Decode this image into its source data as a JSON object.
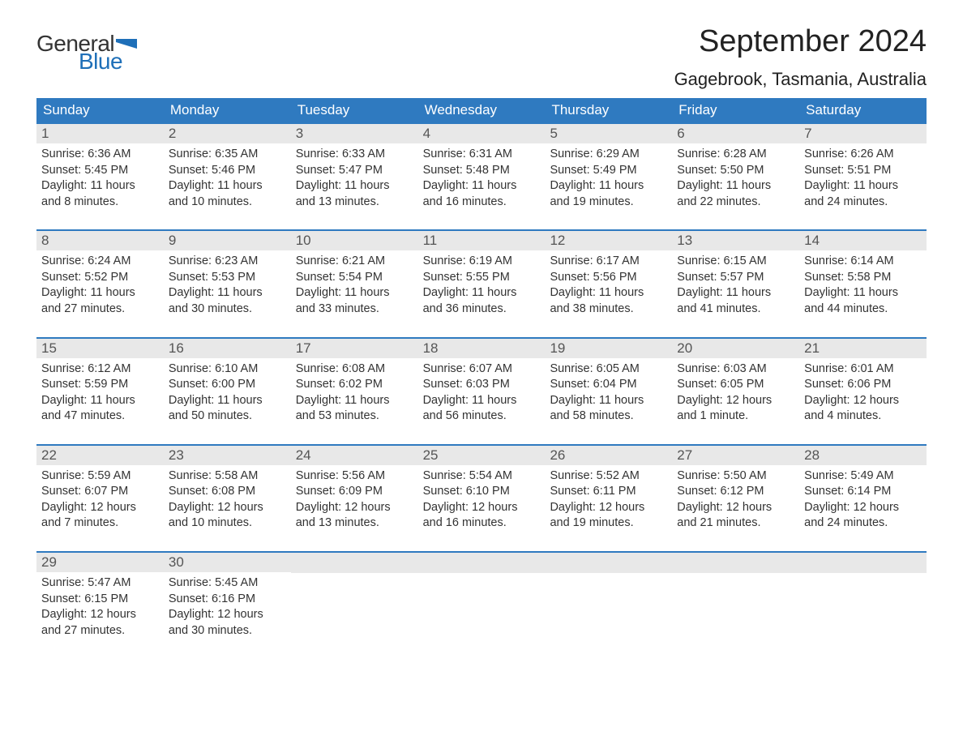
{
  "logo": {
    "text1": "General",
    "text2": "Blue",
    "color_dark": "#333333",
    "color_blue": "#1e6fb8"
  },
  "title": "September 2024",
  "location": "Gagebrook, Tasmania, Australia",
  "colors": {
    "header_bg": "#2f7ac0",
    "header_text": "#ffffff",
    "daynum_bg": "#e8e8e8",
    "daynum_text": "#555555",
    "body_text": "#333333",
    "page_bg": "#ffffff",
    "week_border": "#2f7ac0"
  },
  "typography": {
    "title_fontsize": 38,
    "location_fontsize": 22,
    "dow_fontsize": 17,
    "daynum_fontsize": 17,
    "body_fontsize": 14.5
  },
  "days_of_week": [
    "Sunday",
    "Monday",
    "Tuesday",
    "Wednesday",
    "Thursday",
    "Friday",
    "Saturday"
  ],
  "weeks": [
    [
      {
        "n": "1",
        "sunrise": "Sunrise: 6:36 AM",
        "sunset": "Sunset: 5:45 PM",
        "d1": "Daylight: 11 hours",
        "d2": "and 8 minutes."
      },
      {
        "n": "2",
        "sunrise": "Sunrise: 6:35 AM",
        "sunset": "Sunset: 5:46 PM",
        "d1": "Daylight: 11 hours",
        "d2": "and 10 minutes."
      },
      {
        "n": "3",
        "sunrise": "Sunrise: 6:33 AM",
        "sunset": "Sunset: 5:47 PM",
        "d1": "Daylight: 11 hours",
        "d2": "and 13 minutes."
      },
      {
        "n": "4",
        "sunrise": "Sunrise: 6:31 AM",
        "sunset": "Sunset: 5:48 PM",
        "d1": "Daylight: 11 hours",
        "d2": "and 16 minutes."
      },
      {
        "n": "5",
        "sunrise": "Sunrise: 6:29 AM",
        "sunset": "Sunset: 5:49 PM",
        "d1": "Daylight: 11 hours",
        "d2": "and 19 minutes."
      },
      {
        "n": "6",
        "sunrise": "Sunrise: 6:28 AM",
        "sunset": "Sunset: 5:50 PM",
        "d1": "Daylight: 11 hours",
        "d2": "and 22 minutes."
      },
      {
        "n": "7",
        "sunrise": "Sunrise: 6:26 AM",
        "sunset": "Sunset: 5:51 PM",
        "d1": "Daylight: 11 hours",
        "d2": "and 24 minutes."
      }
    ],
    [
      {
        "n": "8",
        "sunrise": "Sunrise: 6:24 AM",
        "sunset": "Sunset: 5:52 PM",
        "d1": "Daylight: 11 hours",
        "d2": "and 27 minutes."
      },
      {
        "n": "9",
        "sunrise": "Sunrise: 6:23 AM",
        "sunset": "Sunset: 5:53 PM",
        "d1": "Daylight: 11 hours",
        "d2": "and 30 minutes."
      },
      {
        "n": "10",
        "sunrise": "Sunrise: 6:21 AM",
        "sunset": "Sunset: 5:54 PM",
        "d1": "Daylight: 11 hours",
        "d2": "and 33 minutes."
      },
      {
        "n": "11",
        "sunrise": "Sunrise: 6:19 AM",
        "sunset": "Sunset: 5:55 PM",
        "d1": "Daylight: 11 hours",
        "d2": "and 36 minutes."
      },
      {
        "n": "12",
        "sunrise": "Sunrise: 6:17 AM",
        "sunset": "Sunset: 5:56 PM",
        "d1": "Daylight: 11 hours",
        "d2": "and 38 minutes."
      },
      {
        "n": "13",
        "sunrise": "Sunrise: 6:15 AM",
        "sunset": "Sunset: 5:57 PM",
        "d1": "Daylight: 11 hours",
        "d2": "and 41 minutes."
      },
      {
        "n": "14",
        "sunrise": "Sunrise: 6:14 AM",
        "sunset": "Sunset: 5:58 PM",
        "d1": "Daylight: 11 hours",
        "d2": "and 44 minutes."
      }
    ],
    [
      {
        "n": "15",
        "sunrise": "Sunrise: 6:12 AM",
        "sunset": "Sunset: 5:59 PM",
        "d1": "Daylight: 11 hours",
        "d2": "and 47 minutes."
      },
      {
        "n": "16",
        "sunrise": "Sunrise: 6:10 AM",
        "sunset": "Sunset: 6:00 PM",
        "d1": "Daylight: 11 hours",
        "d2": "and 50 minutes."
      },
      {
        "n": "17",
        "sunrise": "Sunrise: 6:08 AM",
        "sunset": "Sunset: 6:02 PM",
        "d1": "Daylight: 11 hours",
        "d2": "and 53 minutes."
      },
      {
        "n": "18",
        "sunrise": "Sunrise: 6:07 AM",
        "sunset": "Sunset: 6:03 PM",
        "d1": "Daylight: 11 hours",
        "d2": "and 56 minutes."
      },
      {
        "n": "19",
        "sunrise": "Sunrise: 6:05 AM",
        "sunset": "Sunset: 6:04 PM",
        "d1": "Daylight: 11 hours",
        "d2": "and 58 minutes."
      },
      {
        "n": "20",
        "sunrise": "Sunrise: 6:03 AM",
        "sunset": "Sunset: 6:05 PM",
        "d1": "Daylight: 12 hours",
        "d2": "and 1 minute."
      },
      {
        "n": "21",
        "sunrise": "Sunrise: 6:01 AM",
        "sunset": "Sunset: 6:06 PM",
        "d1": "Daylight: 12 hours",
        "d2": "and 4 minutes."
      }
    ],
    [
      {
        "n": "22",
        "sunrise": "Sunrise: 5:59 AM",
        "sunset": "Sunset: 6:07 PM",
        "d1": "Daylight: 12 hours",
        "d2": "and 7 minutes."
      },
      {
        "n": "23",
        "sunrise": "Sunrise: 5:58 AM",
        "sunset": "Sunset: 6:08 PM",
        "d1": "Daylight: 12 hours",
        "d2": "and 10 minutes."
      },
      {
        "n": "24",
        "sunrise": "Sunrise: 5:56 AM",
        "sunset": "Sunset: 6:09 PM",
        "d1": "Daylight: 12 hours",
        "d2": "and 13 minutes."
      },
      {
        "n": "25",
        "sunrise": "Sunrise: 5:54 AM",
        "sunset": "Sunset: 6:10 PM",
        "d1": "Daylight: 12 hours",
        "d2": "and 16 minutes."
      },
      {
        "n": "26",
        "sunrise": "Sunrise: 5:52 AM",
        "sunset": "Sunset: 6:11 PM",
        "d1": "Daylight: 12 hours",
        "d2": "and 19 minutes."
      },
      {
        "n": "27",
        "sunrise": "Sunrise: 5:50 AM",
        "sunset": "Sunset: 6:12 PM",
        "d1": "Daylight: 12 hours",
        "d2": "and 21 minutes."
      },
      {
        "n": "28",
        "sunrise": "Sunrise: 5:49 AM",
        "sunset": "Sunset: 6:14 PM",
        "d1": "Daylight: 12 hours",
        "d2": "and 24 minutes."
      }
    ],
    [
      {
        "n": "29",
        "sunrise": "Sunrise: 5:47 AM",
        "sunset": "Sunset: 6:15 PM",
        "d1": "Daylight: 12 hours",
        "d2": "and 27 minutes."
      },
      {
        "n": "30",
        "sunrise": "Sunrise: 5:45 AM",
        "sunset": "Sunset: 6:16 PM",
        "d1": "Daylight: 12 hours",
        "d2": "and 30 minutes."
      },
      null,
      null,
      null,
      null,
      null
    ]
  ]
}
